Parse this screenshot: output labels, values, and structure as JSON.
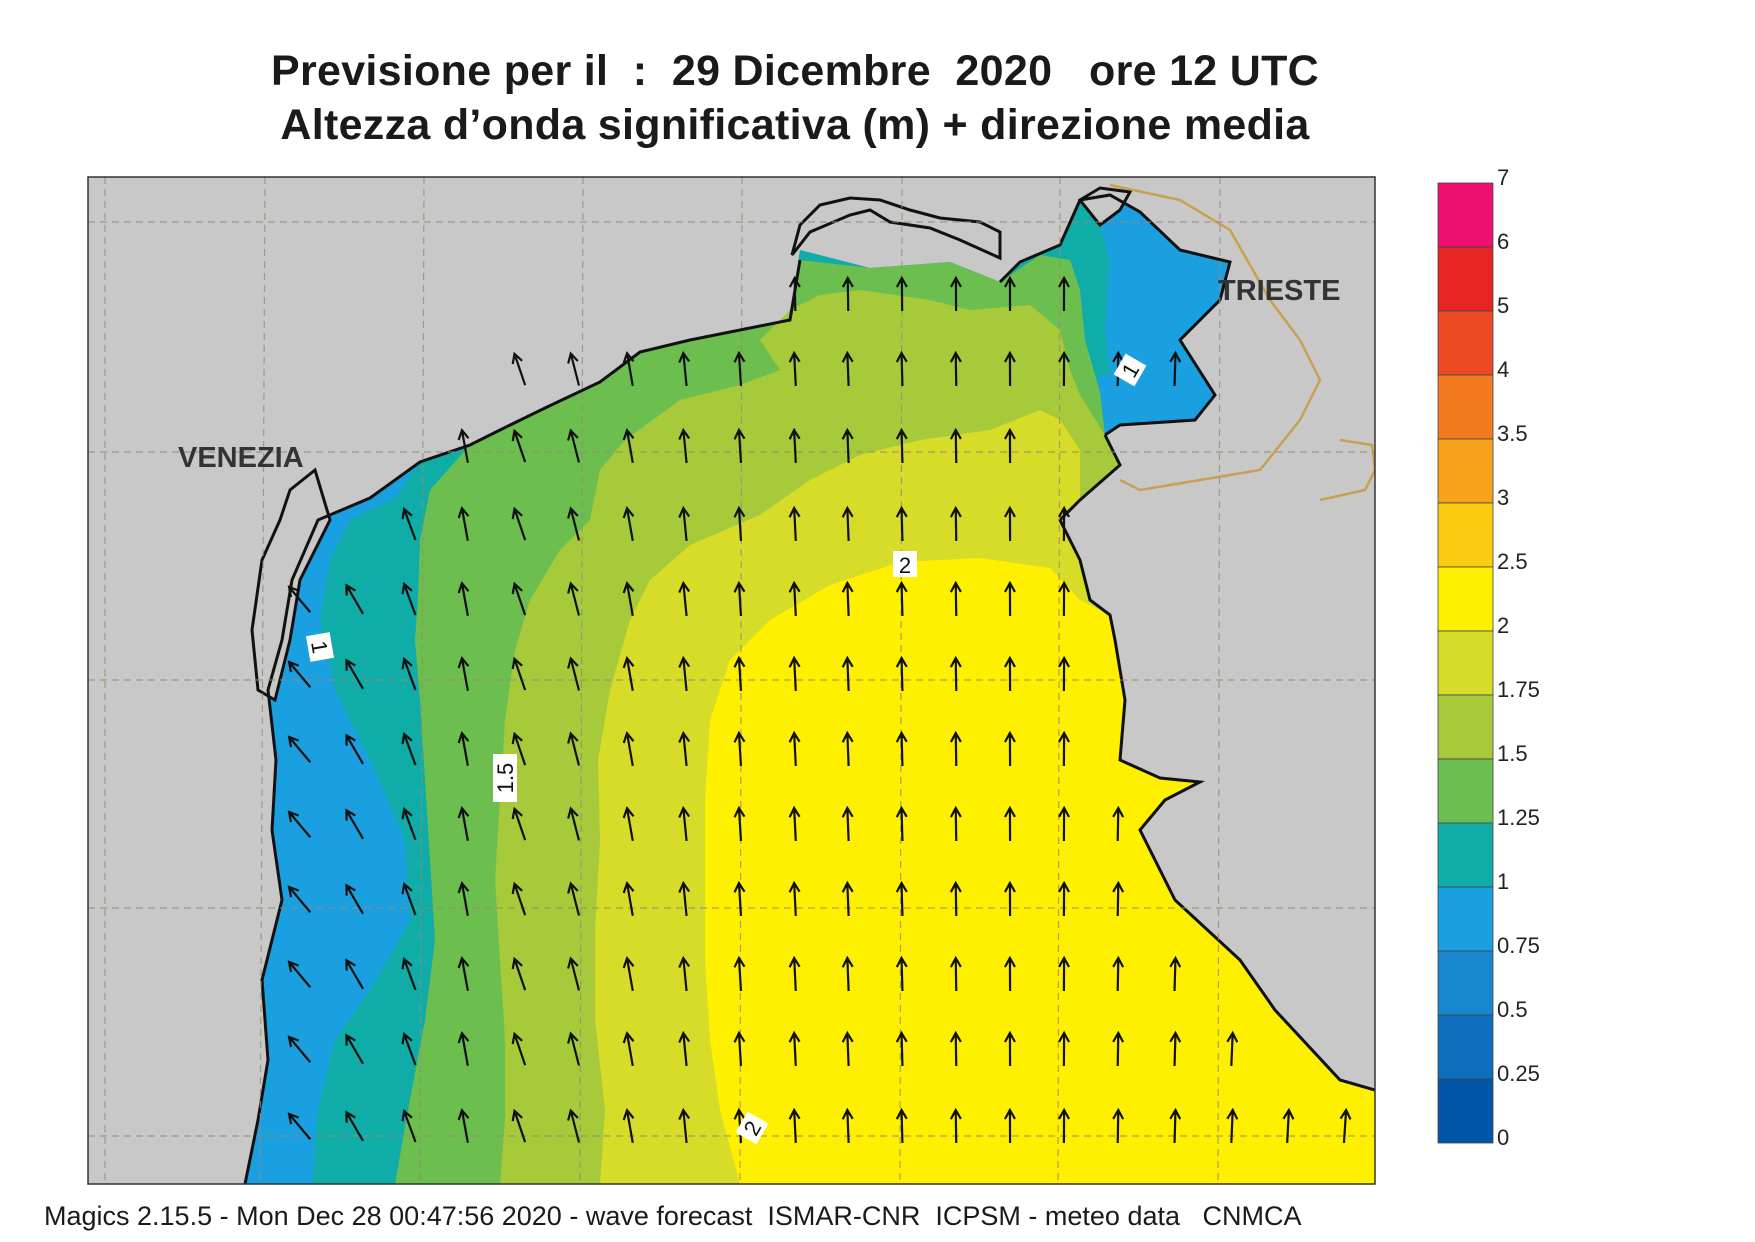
{
  "title": {
    "line1": "Previsione per il  :  29 Dicembre  2020   ore 12 UTC",
    "line2": "Altezza d’onda significativa (m) + direzione media"
  },
  "footer": "Magics 2.15.5 - Mon Dec 28 00:47:56 2020 - wave forecast  ISMAR-CNR  ICPSM - meteo data   CNMCA",
  "map": {
    "cities": [
      {
        "name": "VENEZIA"
      },
      {
        "name": "TRIESTE"
      }
    ],
    "contour_labels": [
      "1",
      "1.5",
      "2",
      "2",
      "1"
    ],
    "field_colors": {
      "0.75-1": "#1a9fe0",
      "1-1.25": "#10ada8",
      "1.25-1.5": "#6cbe4f",
      "1.5-1.75": "#a6ca3a",
      "1.75-2": "#d6dc28",
      "2-2.5": "#fff000",
      "land": "#c8c8c8",
      "coastline": "#111111",
      "border": "#c8a050"
    },
    "arrow_glyph": "up-arrow-icon"
  },
  "legend": {
    "ticks": [
      "7",
      "6",
      "5",
      "4",
      "3.5",
      "3",
      "2.5",
      "2",
      "1.75",
      "1.5",
      "1.25",
      "1",
      "0.75",
      "0.5",
      "0.25",
      "0"
    ],
    "colors": [
      "#ee1070",
      "#e62424",
      "#ec4a24",
      "#f47a20",
      "#f8a21c",
      "#fbcc10",
      "#fff000",
      "#d6dc28",
      "#a6ca3a",
      "#6cbe4f",
      "#10ada8",
      "#1a9fe0",
      "#1788d0",
      "#0c6ebc",
      "#0055a8"
    ]
  }
}
